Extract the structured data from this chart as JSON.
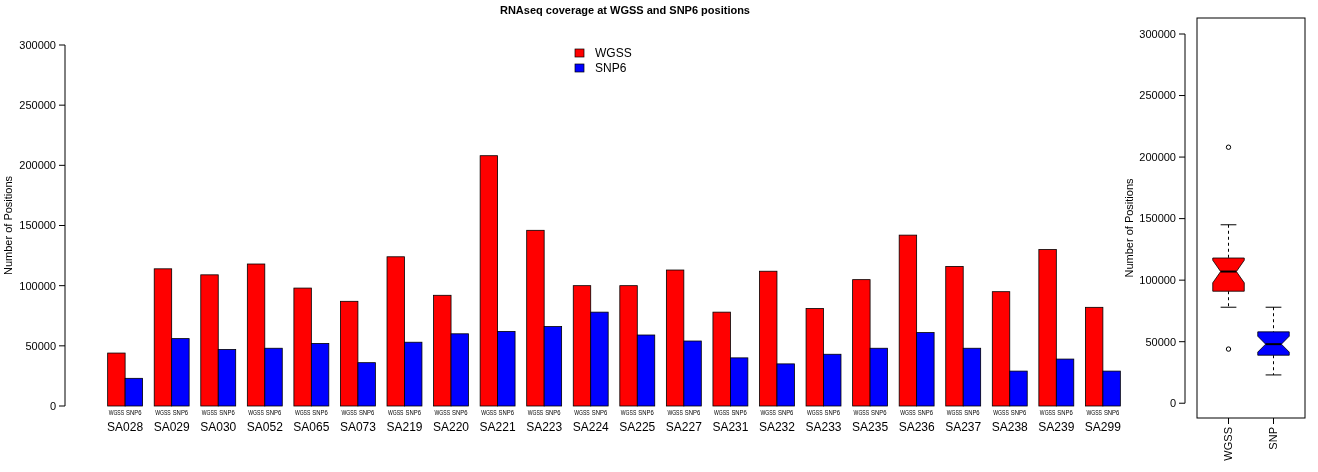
{
  "chart_data": [
    {
      "type": "bar",
      "title": "RNAseq coverage at WGSS and SNP6 positions",
      "ylabel": "Number of Positions",
      "categories": [
        "SA028",
        "SA029",
        "SA030",
        "SA052",
        "SA065",
        "SA073",
        "SA219",
        "SA220",
        "SA221",
        "SA223",
        "SA224",
        "SA225",
        "SA227",
        "SA231",
        "SA232",
        "SA233",
        "SA235",
        "SA236",
        "SA237",
        "SA238",
        "SA239",
        "SA299"
      ],
      "series": [
        {
          "name": "WGSS",
          "color": "#ff0000",
          "values": [
            44000,
            114000,
            109000,
            118000,
            98000,
            87000,
            124000,
            92000,
            208000,
            146000,
            100000,
            100000,
            113000,
            78000,
            112000,
            81000,
            105000,
            142000,
            116000,
            95000,
            130000,
            82000
          ]
        },
        {
          "name": "SNP6",
          "color": "#0000ff",
          "values": [
            23000,
            56000,
            47000,
            48000,
            52000,
            36000,
            53000,
            60000,
            62000,
            66000,
            78000,
            59000,
            54000,
            40000,
            35000,
            43000,
            48000,
            61000,
            48000,
            29000,
            39000,
            29000
          ]
        }
      ],
      "ylim": [
        0,
        300000
      ],
      "yticks": [
        0,
        50000,
        100000,
        150000,
        200000,
        250000,
        300000
      ],
      "legend": "top",
      "grid": false
    },
    {
      "type": "box",
      "ylabel": "Number of Positions",
      "categories": [
        "WGSS",
        "SNP"
      ],
      "colors": [
        "#ff0000",
        "#0000ff"
      ],
      "boxes": [
        {
          "low": 78000,
          "q1": 91000,
          "median": 107000,
          "q3": 118000,
          "high": 145000,
          "outliers": [
            44000,
            208000
          ]
        },
        {
          "low": 23000,
          "q1": 39000,
          "median": 48000,
          "q3": 58000,
          "high": 78000
        }
      ],
      "ylim": [
        -12000,
        313000
      ],
      "yticks": [
        0,
        50000,
        100000,
        150000,
        200000,
        250000,
        300000
      ],
      "grid": false
    }
  ]
}
